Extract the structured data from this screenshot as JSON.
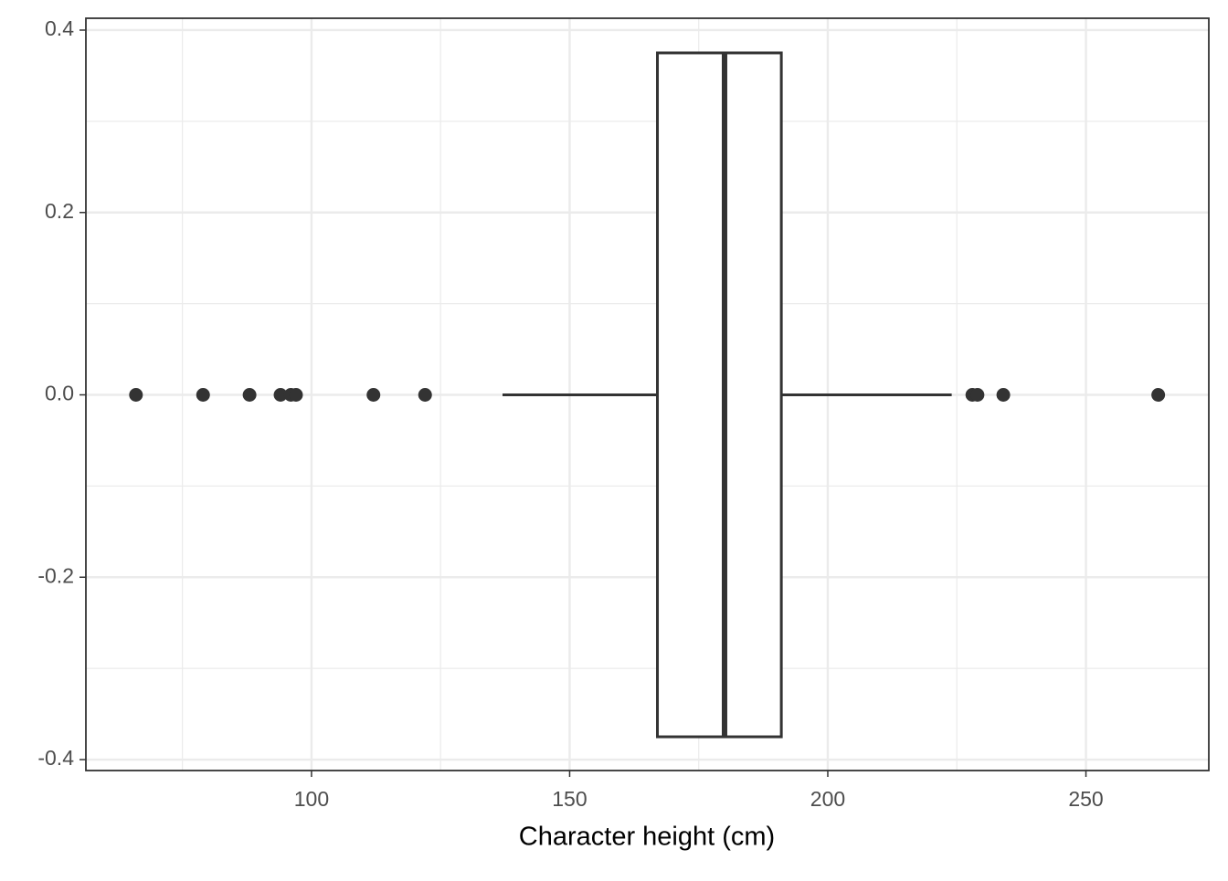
{
  "chart_data": {
    "type": "boxplot",
    "orientation": "horizontal",
    "xlabel": "Character height (cm)",
    "xlim": [
      56.3,
      273.8
    ],
    "xticks": [
      100,
      150,
      200,
      250
    ],
    "x_minor_ticks": [
      75,
      125,
      175,
      225
    ],
    "ylim": [
      -0.412,
      0.413
    ],
    "yticks": [
      0.4,
      0.2,
      {
        "value": 0,
        "label": "0.0"
      },
      -0.2,
      -0.4
    ],
    "y_minor_ticks": [
      0.3,
      0.1,
      -0.1,
      -0.3
    ],
    "grid": true,
    "box": {
      "lower": 137,
      "q1": 167,
      "median": 180,
      "q3": 191,
      "upper": 224,
      "width": 0.75,
      "position": 0
    },
    "outliers": [
      66,
      79,
      88,
      94,
      96,
      97,
      112,
      122,
      228,
      229,
      234,
      264
    ],
    "color": "#333333"
  }
}
